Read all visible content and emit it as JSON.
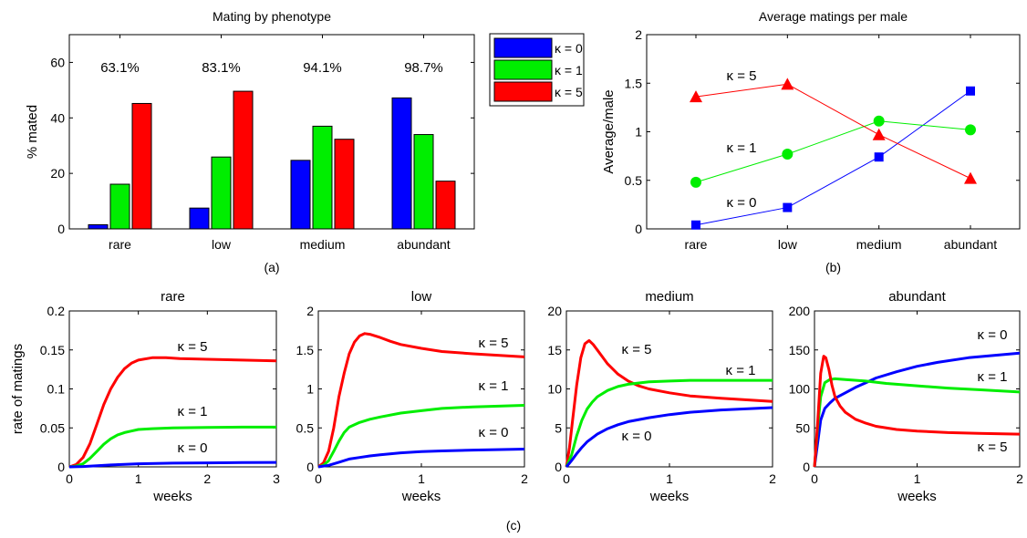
{
  "figure": {
    "panel_labels": [
      "(a)",
      "(b)",
      "(c)"
    ]
  },
  "colors": {
    "k0": "#0000ff",
    "k1": "#00ee00",
    "k5": "#ff0000"
  },
  "chart_data": [
    {
      "type": "bar",
      "title": "Mating by phenotype",
      "ylabel": "% mated",
      "xlabel": "",
      "ylim": [
        0,
        70
      ],
      "yticks": [
        0,
        20,
        40,
        60
      ],
      "categories": [
        "rare",
        "low",
        "medium",
        "abundant"
      ],
      "series": [
        {
          "name": "κ = 0",
          "values": [
            1.5,
            7.5,
            24.7,
            47.2
          ]
        },
        {
          "name": "κ = 1",
          "values": [
            16.1,
            25.9,
            37.0,
            34.0
          ]
        },
        {
          "name": "κ = 5",
          "values": [
            45.2,
            49.6,
            32.3,
            17.2
          ]
        }
      ],
      "annotations": [
        "63.1%",
        "83.1%",
        "94.1%",
        "98.7%"
      ],
      "legend_position": "outside top-right"
    },
    {
      "type": "line",
      "title": "Average matings per male",
      "ylabel": "Average/male",
      "xlabel": "",
      "ylim": [
        0,
        2
      ],
      "yticks": [
        "0",
        "0.5",
        "1",
        "1.5",
        "2"
      ],
      "categories": [
        "rare",
        "low",
        "medium",
        "abundant"
      ],
      "series": [
        {
          "name": "κ = 0",
          "values": [
            0.04,
            0.22,
            0.74,
            1.42
          ],
          "marker": "square"
        },
        {
          "name": "κ = 1",
          "values": [
            0.48,
            0.77,
            1.11,
            1.02
          ],
          "marker": "circle"
        },
        {
          "name": "κ = 5",
          "values": [
            1.36,
            1.49,
            0.97,
            0.52
          ],
          "marker": "triangle"
        }
      ]
    },
    {
      "type": "line",
      "title": "rare",
      "ylabel": "rate of matings",
      "xlabel": "weeks",
      "xlim": [
        0,
        3
      ],
      "ylim": [
        0,
        0.2
      ],
      "xticks": [
        "0",
        "1",
        "2",
        "3"
      ],
      "yticks": [
        "0",
        "0.05",
        "0.1",
        "0.15",
        "0.2"
      ],
      "series": [
        {
          "name": "κ = 5",
          "x": [
            0,
            0.1,
            0.2,
            0.3,
            0.4,
            0.5,
            0.6,
            0.7,
            0.8,
            0.9,
            1.0,
            1.2,
            1.4,
            1.6,
            2.0,
            2.5,
            3.0
          ],
          "y": [
            0,
            0.003,
            0.012,
            0.03,
            0.055,
            0.08,
            0.1,
            0.115,
            0.126,
            0.133,
            0.137,
            0.14,
            0.14,
            0.139,
            0.138,
            0.137,
            0.136
          ]
        },
        {
          "name": "κ = 1",
          "x": [
            0,
            0.1,
            0.2,
            0.3,
            0.4,
            0.5,
            0.6,
            0.7,
            0.8,
            0.9,
            1.0,
            1.2,
            1.5,
            2.0,
            2.5,
            3.0
          ],
          "y": [
            0,
            0.001,
            0.004,
            0.011,
            0.02,
            0.029,
            0.036,
            0.041,
            0.044,
            0.046,
            0.048,
            0.049,
            0.05,
            0.0505,
            0.051,
            0.051
          ]
        },
        {
          "name": "κ = 0",
          "x": [
            0,
            0.2,
            0.4,
            0.6,
            0.8,
            1.0,
            1.5,
            2.0,
            2.5,
            3.0
          ],
          "y": [
            0,
            0.0005,
            0.0015,
            0.0025,
            0.0033,
            0.004,
            0.0048,
            0.0052,
            0.0055,
            0.0057
          ]
        }
      ]
    },
    {
      "type": "line",
      "title": "low",
      "ylabel": "",
      "xlabel": "weeks",
      "xlim": [
        0,
        2
      ],
      "ylim": [
        0,
        2
      ],
      "xticks": [
        "0",
        "1",
        "2"
      ],
      "yticks": [
        "0",
        "0.5",
        "1",
        "1.5",
        "2"
      ],
      "series": [
        {
          "name": "κ = 5",
          "x": [
            0,
            0.05,
            0.1,
            0.15,
            0.2,
            0.25,
            0.3,
            0.35,
            0.4,
            0.45,
            0.5,
            0.6,
            0.7,
            0.8,
            1.0,
            1.2,
            1.5,
            2.0
          ],
          "y": [
            0,
            0.05,
            0.2,
            0.5,
            0.9,
            1.2,
            1.45,
            1.6,
            1.68,
            1.71,
            1.7,
            1.66,
            1.61,
            1.57,
            1.52,
            1.48,
            1.45,
            1.41
          ]
        },
        {
          "name": "κ = 1",
          "x": [
            0,
            0.05,
            0.1,
            0.15,
            0.2,
            0.25,
            0.3,
            0.4,
            0.5,
            0.6,
            0.8,
            1.0,
            1.2,
            1.5,
            2.0
          ],
          "y": [
            0,
            0.02,
            0.08,
            0.2,
            0.33,
            0.44,
            0.51,
            0.57,
            0.61,
            0.64,
            0.69,
            0.72,
            0.75,
            0.77,
            0.79
          ]
        },
        {
          "name": "κ = 0",
          "x": [
            0,
            0.1,
            0.2,
            0.3,
            0.4,
            0.5,
            0.6,
            0.8,
            1.0,
            1.2,
            1.5,
            2.0
          ],
          "y": [
            0,
            0.02,
            0.06,
            0.1,
            0.12,
            0.14,
            0.155,
            0.18,
            0.195,
            0.205,
            0.215,
            0.228
          ]
        }
      ]
    },
    {
      "type": "line",
      "title": "medium",
      "ylabel": "",
      "xlabel": "weeks",
      "xlim": [
        0,
        2
      ],
      "ylim": [
        0,
        20
      ],
      "xticks": [
        "0",
        "1",
        "2"
      ],
      "yticks": [
        "0",
        "5",
        "10",
        "15",
        "20"
      ],
      "series": [
        {
          "name": "κ = 5",
          "x": [
            0,
            0.03,
            0.06,
            0.1,
            0.14,
            0.18,
            0.22,
            0.26,
            0.3,
            0.35,
            0.4,
            0.5,
            0.6,
            0.7,
            0.8,
            1.0,
            1.2,
            1.5,
            2.0
          ],
          "y": [
            0,
            2.5,
            6,
            10.5,
            14,
            15.8,
            16.2,
            15.7,
            15,
            14.1,
            13.2,
            11.9,
            11,
            10.4,
            10,
            9.5,
            9.1,
            8.8,
            8.4
          ]
        },
        {
          "name": "κ = 1",
          "x": [
            0,
            0.05,
            0.1,
            0.15,
            0.2,
            0.25,
            0.3,
            0.4,
            0.5,
            0.6,
            0.8,
            1.0,
            1.2,
            1.5,
            2.0
          ],
          "y": [
            0,
            1.5,
            4,
            6,
            7.4,
            8.3,
            9,
            9.8,
            10.3,
            10.6,
            10.9,
            11,
            11.1,
            11.1,
            11.1
          ]
        },
        {
          "name": "κ = 0",
          "x": [
            0,
            0.05,
            0.1,
            0.15,
            0.2,
            0.3,
            0.4,
            0.5,
            0.6,
            0.8,
            1.0,
            1.2,
            1.5,
            2.0
          ],
          "y": [
            0,
            0.8,
            1.7,
            2.5,
            3.2,
            4.2,
            4.9,
            5.4,
            5.8,
            6.3,
            6.7,
            7,
            7.3,
            7.6
          ]
        }
      ]
    },
    {
      "type": "line",
      "title": "abundant",
      "ylabel": "",
      "xlabel": "weeks",
      "xlim": [
        0,
        2
      ],
      "ylim": [
        0,
        200
      ],
      "xticks": [
        "0",
        "1",
        "2"
      ],
      "yticks": [
        "0",
        "50",
        "100",
        "150",
        "200"
      ],
      "series": [
        {
          "name": "κ = 0",
          "x": [
            0,
            0.03,
            0.06,
            0.1,
            0.15,
            0.2,
            0.3,
            0.4,
            0.5,
            0.6,
            0.8,
            1.0,
            1.2,
            1.5,
            2.0
          ],
          "y": [
            0,
            30,
            60,
            75,
            82,
            88,
            95,
            102,
            108,
            114,
            122,
            129,
            134,
            140,
            146
          ]
        },
        {
          "name": "κ = 1",
          "x": [
            0,
            0.03,
            0.06,
            0.1,
            0.15,
            0.2,
            0.3,
            0.5,
            0.7,
            1.0,
            1.3,
            1.6,
            2.0
          ],
          "y": [
            0,
            50,
            90,
            108,
            112,
            113,
            112,
            110,
            107,
            104,
            101,
            99,
            96
          ]
        },
        {
          "name": "κ = 5",
          "x": [
            0,
            0.03,
            0.06,
            0.09,
            0.11,
            0.14,
            0.17,
            0.2,
            0.25,
            0.3,
            0.4,
            0.5,
            0.6,
            0.8,
            1.0,
            1.3,
            1.6,
            2.0
          ],
          "y": [
            0,
            55,
            120,
            142,
            140,
            125,
            105,
            90,
            78,
            70,
            61,
            56,
            52,
            48,
            46,
            44,
            43,
            42
          ]
        }
      ]
    }
  ]
}
